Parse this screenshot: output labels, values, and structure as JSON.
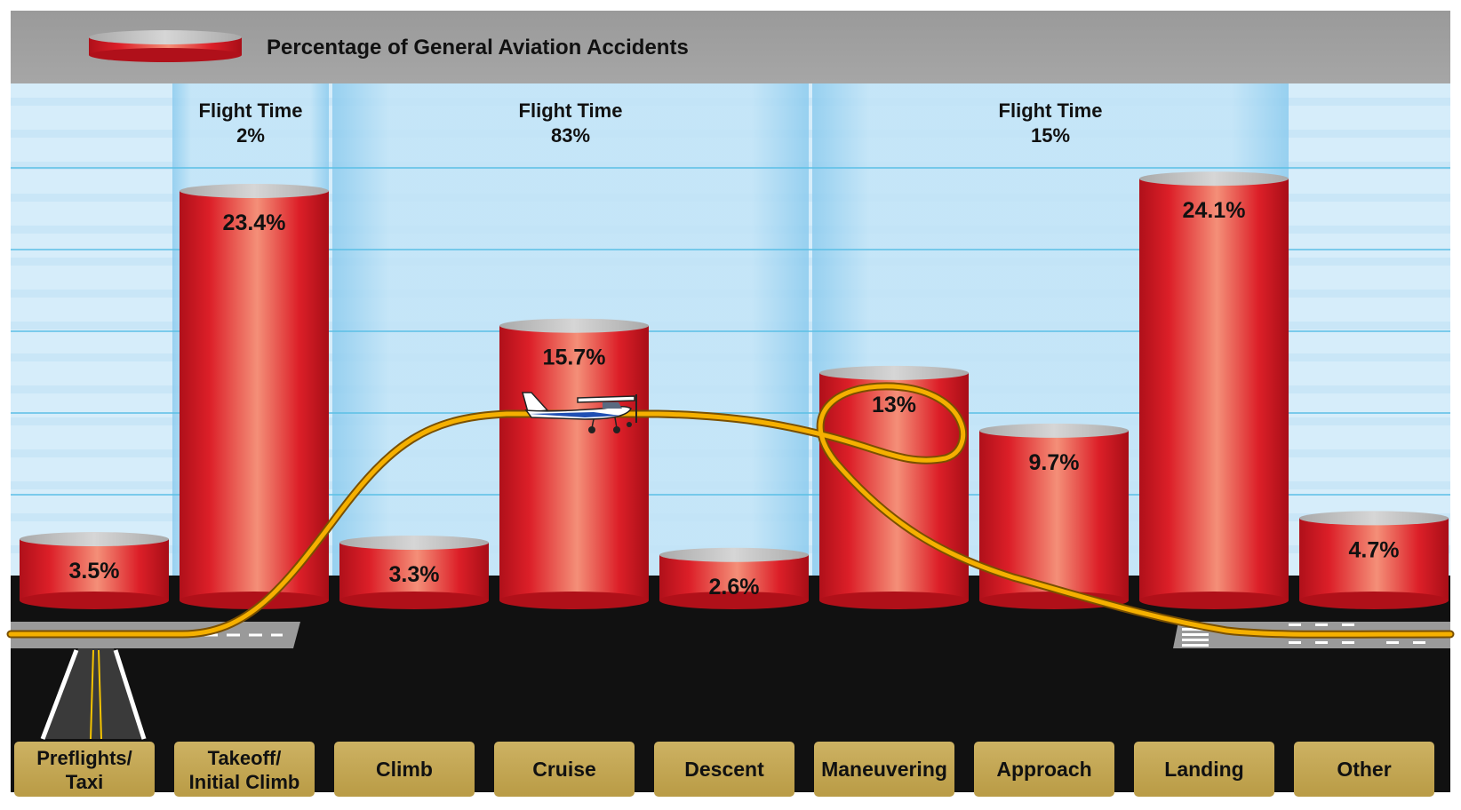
{
  "chart_data": {
    "type": "bar",
    "title": "Percentage of General Aviation Accidents",
    "legend": {
      "placement": "top-left",
      "entry": ""
    },
    "categories": [
      "Preflights/\nTaxi",
      "Takeoff/\nInitial Climb",
      "Climb",
      "Cruise",
      "Descent",
      "Maneuvering",
      "Approach",
      "Landing",
      "Other"
    ],
    "values": [
      3.5,
      23.4,
      3.3,
      15.7,
      2.6,
      13,
      9.7,
      24.1,
      4.7
    ],
    "value_labels": [
      "3.5%",
      "23.4%",
      "3.3%",
      "15.7%",
      "2.6%",
      "13%",
      "9.7%",
      "24.1%",
      "4.7%"
    ],
    "ylim": [
      0,
      28
    ],
    "grid": true,
    "phase_groups": [
      {
        "title": "Flight Time",
        "percent": "2%",
        "start_index": 1,
        "end_index": 1
      },
      {
        "title": "Flight Time",
        "percent": "83%",
        "start_index": 2,
        "end_index": 4
      },
      {
        "title": "Flight Time",
        "percent": "15%",
        "start_index": 5,
        "end_index": 7
      }
    ],
    "colors": {
      "bar": "#d8202a",
      "bar_highlight": "#f4907a",
      "bar_top": "#c2c2c2",
      "header": "#9e9e9e",
      "sky": "#d4ecfa",
      "grid": "#5bbfe6",
      "ground": "#111111",
      "label_box": "#c9ad5a",
      "flight_path": "#f2a900"
    }
  }
}
